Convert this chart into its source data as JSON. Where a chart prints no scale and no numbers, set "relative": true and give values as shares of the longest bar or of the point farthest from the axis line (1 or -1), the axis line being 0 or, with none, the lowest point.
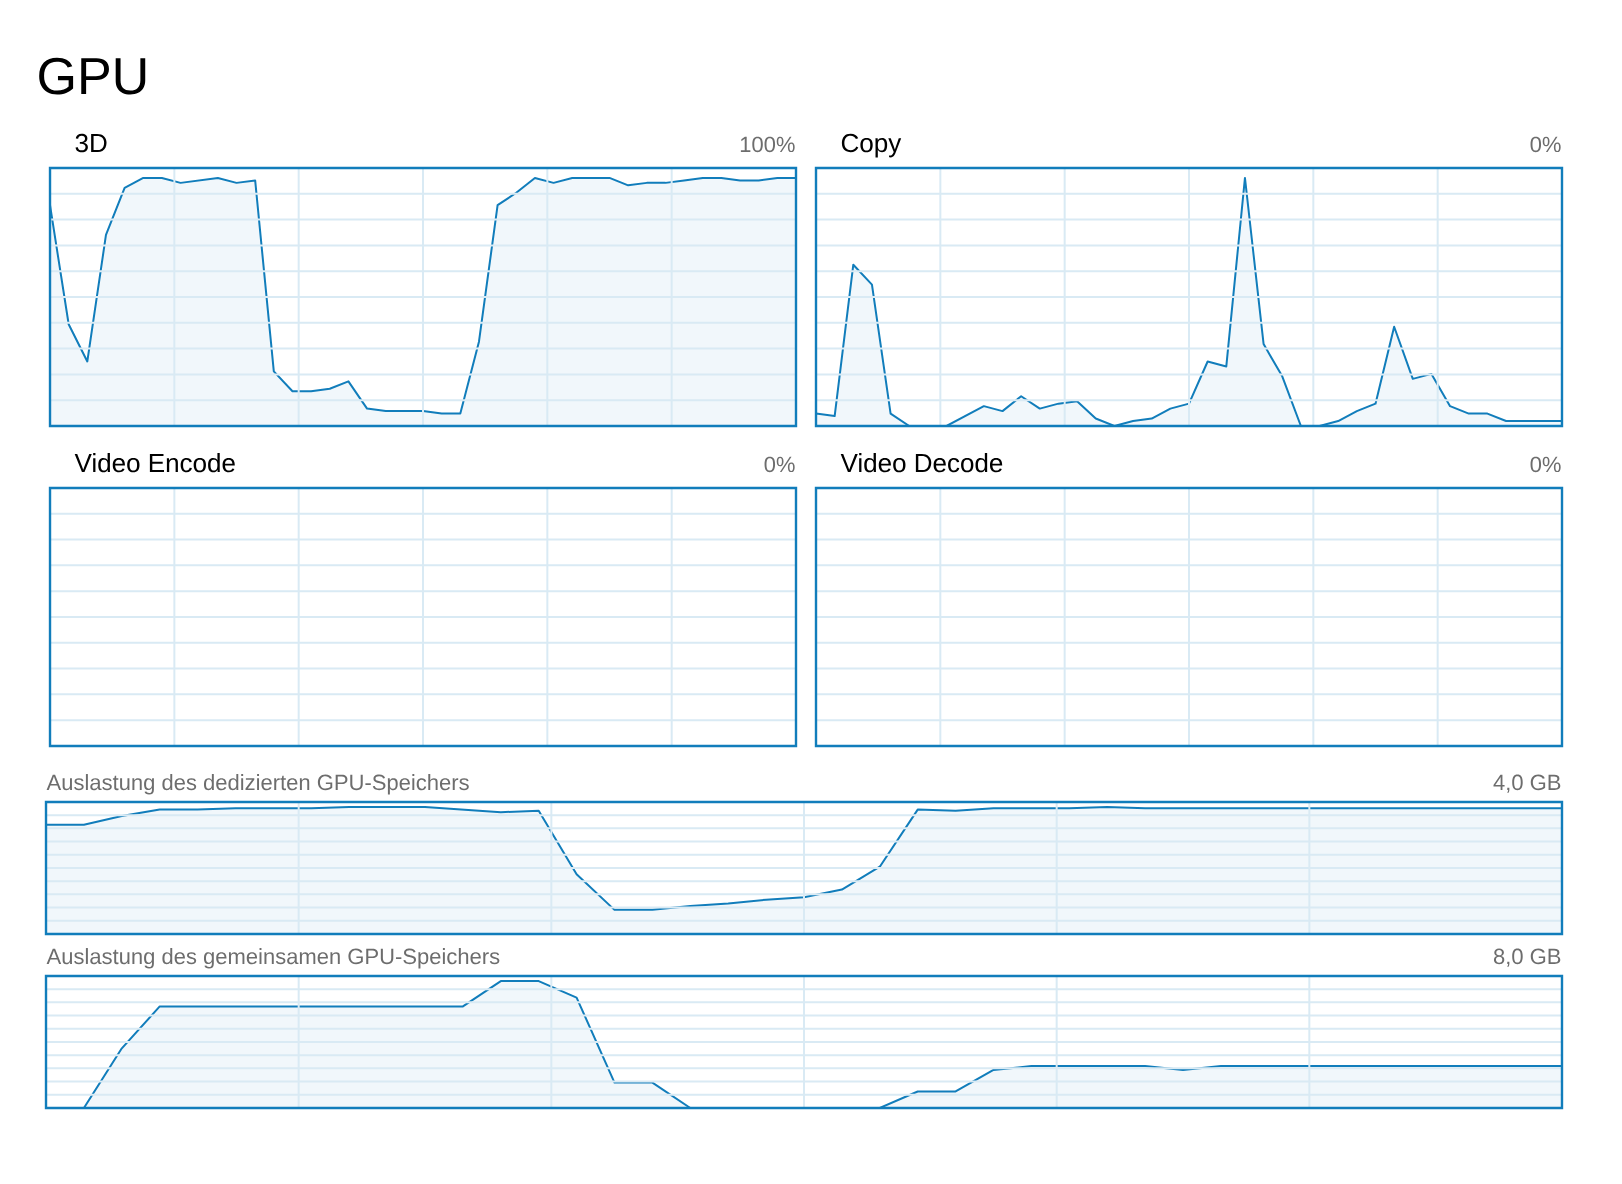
{
  "chart_data": [
    {
      "type": "area",
      "title": "3D",
      "annotations": [
        "100%",
        "GPU"
      ],
      "relative": true,
      "grid": true,
      "color": "#117dbb",
      "categories": [
        null,
        null,
        null,
        null,
        null,
        null,
        null,
        null,
        null,
        null,
        null,
        null,
        null,
        null,
        null,
        null,
        null,
        null,
        null,
        null,
        null,
        null,
        null,
        null,
        null,
        null,
        null,
        null,
        null,
        null,
        null,
        null,
        null,
        null,
        null,
        null,
        null,
        null,
        null,
        null,
        null
      ],
      "values": [
        0.89,
        0.41,
        0.26,
        0.77,
        0.96,
        1.0,
        1.0,
        0.98,
        0.99,
        1.0,
        0.98,
        0.99,
        0.22,
        0.14,
        0.14,
        0.15,
        0.18,
        0.07,
        0.06,
        0.06,
        0.06,
        0.05,
        0.05,
        0.34,
        0.89,
        0.94,
        1.0,
        0.98,
        1.0,
        1.0,
        1.0,
        0.97,
        0.98,
        0.98,
        0.99,
        1.0,
        1.0,
        0.99,
        0.99,
        1.0,
        1.0
      ]
    },
    {
      "type": "area",
      "title": "Copy",
      "annotations": [
        "0%"
      ],
      "relative": true,
      "grid": true,
      "color": "#117dbb",
      "categories": [
        null,
        null,
        null,
        null,
        null,
        null,
        null,
        null,
        null,
        null,
        null,
        null,
        null,
        null,
        null,
        null,
        null,
        null,
        null,
        null,
        null,
        null,
        null,
        null,
        null,
        null,
        null,
        null,
        null,
        null,
        null,
        null,
        null,
        null,
        null,
        null,
        null,
        null,
        null,
        null,
        null
      ],
      "values": [
        0.05,
        0.04,
        0.65,
        0.57,
        0.05,
        0,
        0,
        0,
        0.04,
        0.08,
        0.06,
        0.12,
        0.07,
        0.09,
        0.1,
        0.03,
        0,
        0.02,
        0.03,
        0.07,
        0.09,
        0.26,
        0.24,
        1.0,
        0.33,
        0.2,
        0,
        0,
        0.02,
        0.06,
        0.09,
        0.4,
        0.19,
        0.21,
        0.08,
        0.05,
        0.05,
        0.02,
        0.02,
        0.02,
        0.02
      ]
    },
    {
      "type": "other",
      "title": "Video Encode",
      "annotations": [
        "0%"
      ],
      "color": "#117dbb"
    },
    {
      "type": "other",
      "title": "Video Decode",
      "annotations": [
        "0%"
      ],
      "color": "#117dbb"
    },
    {
      "type": "area",
      "title": "Auslastung des dedizierten GPU-Speichers",
      "annotations": [
        "4,0 GB"
      ],
      "relative": true,
      "grid": true,
      "color": "#117dbb",
      "categories": [
        null,
        null,
        null,
        null,
        null,
        null,
        null,
        null,
        null,
        null,
        null,
        null,
        null,
        null,
        null,
        null,
        null,
        null,
        null,
        null,
        null,
        null,
        null,
        null,
        null,
        null,
        null,
        null,
        null,
        null,
        null,
        null,
        null,
        null,
        null,
        null,
        null,
        null,
        null,
        null,
        null
      ],
      "values": [
        0.86,
        0.86,
        0.93,
        0.98,
        0.98,
        0.99,
        0.99,
        0.99,
        1.0,
        1.0,
        1.0,
        0.98,
        0.96,
        0.97,
        0.47,
        0.19,
        0.19,
        0.22,
        0.24,
        0.27,
        0.29,
        0.35,
        0.53,
        0.98,
        0.97,
        0.99,
        0.99,
        0.99,
        1.0,
        0.99,
        0.99,
        0.99,
        0.99,
        0.99,
        0.99,
        0.99,
        0.99,
        0.99,
        0.99,
        0.99,
        0.99
      ]
    },
    {
      "type": "area",
      "title": "Auslastung des gemeinsamen GPU-Speichers",
      "annotations": [
        "8,0 GB"
      ],
      "relative": true,
      "grid": true,
      "color": "#117dbb",
      "categories": [
        null,
        null,
        null,
        null,
        null,
        null,
        null,
        null,
        null,
        null,
        null,
        null,
        null,
        null,
        null,
        null,
        null,
        null,
        null,
        null,
        null,
        null,
        null,
        null,
        null,
        null,
        null,
        null,
        null,
        null,
        null,
        null,
        null,
        null,
        null,
        null,
        null,
        null,
        null,
        null,
        null
      ],
      "values": [
        0,
        0,
        0.47,
        0.8,
        0.8,
        0.8,
        0.8,
        0.8,
        0.8,
        0.8,
        0.8,
        0.8,
        1.0,
        1.0,
        0.87,
        0.2,
        0.2,
        0,
        0,
        0,
        0,
        0,
        0,
        0.13,
        0.13,
        0.3,
        0.33,
        0.33,
        0.33,
        0.33,
        0.3,
        0.33,
        0.33,
        0.33,
        0.33,
        0.33,
        0.33,
        0.33,
        0.33,
        0.33,
        0.33
      ]
    }
  ]
}
